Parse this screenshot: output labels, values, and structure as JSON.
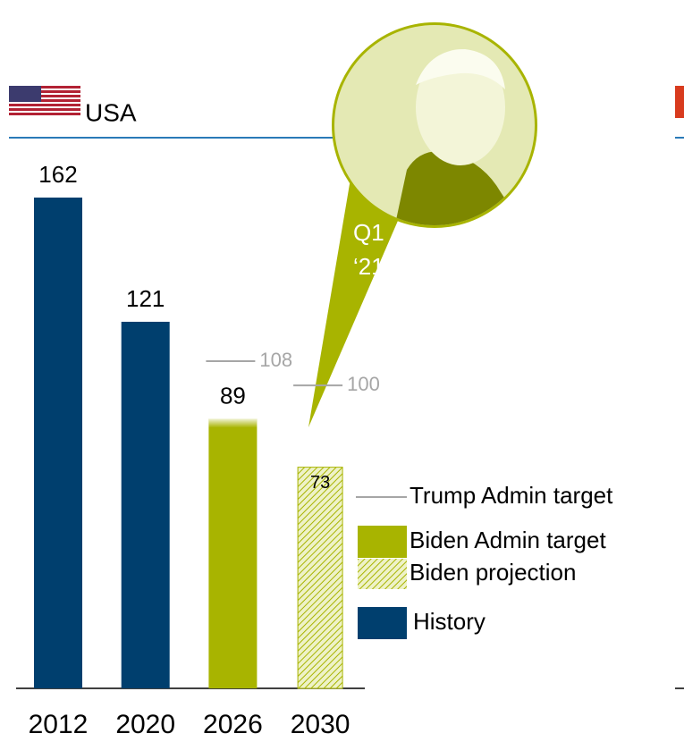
{
  "chart_data": {
    "type": "bar",
    "title": "USA",
    "categories": [
      "2012",
      "2020",
      "2026",
      "2030"
    ],
    "series": [
      {
        "name": "Trump Admin target",
        "style": "tick",
        "color": "#a6a6a6",
        "values": [
          null,
          null,
          108,
          100
        ]
      },
      {
        "name": "Biden Admin target",
        "style": "solid",
        "color": "#a8b400",
        "values": [
          null,
          null,
          89,
          null
        ]
      },
      {
        "name": "Biden projection",
        "style": "hatch",
        "color": "#a8b400",
        "values": [
          null,
          null,
          null,
          73
        ]
      },
      {
        "name": "History",
        "style": "solid",
        "color": "#003f6e",
        "values": [
          162,
          121,
          null,
          null
        ]
      }
    ],
    "callout": [
      "Q1",
      "‘21"
    ]
  }
}
